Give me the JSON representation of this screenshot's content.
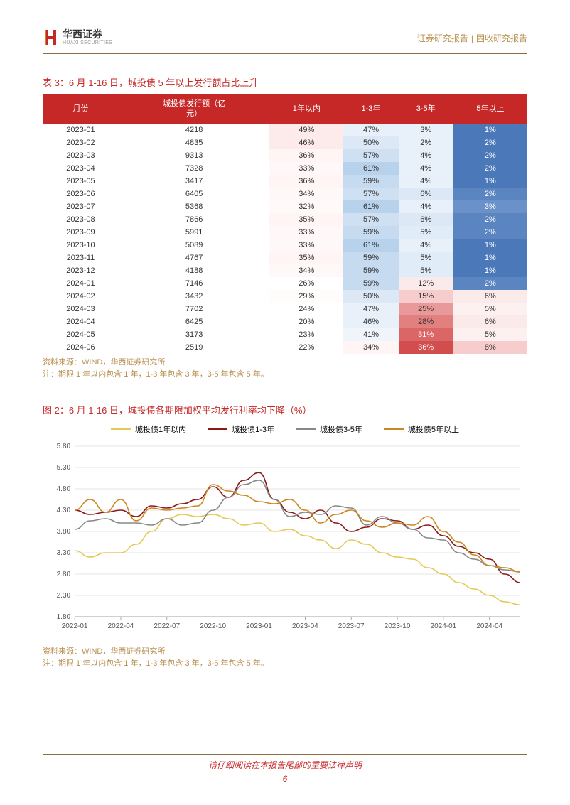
{
  "header": {
    "logo_cn": "华西证券",
    "logo_en": "HUAXI SECURITIES",
    "right_a": "证券研究报告",
    "right_b": "固收研究报告"
  },
  "table": {
    "title": "表 3：6 月 1-16 日，城投债 5 年以上发行额占比上升",
    "columns": [
      "月份",
      "城投债发行额（亿元）",
      "1年以内",
      "1-3年",
      "3-5年",
      "5年以上"
    ],
    "rows": [
      {
        "month": "2023-01",
        "amt": "4218",
        "c1": "49%",
        "c2": "47%",
        "c3": "3%",
        "c4": "1%",
        "cols": {
          "c1": "#fdeaea",
          "c2": "#e8f0fa",
          "c3": "#e8f0fa",
          "c4": "#4b78b8"
        }
      },
      {
        "month": "2023-02",
        "amt": "4835",
        "c1": "46%",
        "c2": "50%",
        "c3": "2%",
        "c4": "2%",
        "cols": {
          "c1": "#fdeaea",
          "c2": "#dce8f6",
          "c3": "#e8f0fa",
          "c4": "#4b78b8"
        }
      },
      {
        "month": "2023-03",
        "amt": "9313",
        "c1": "36%",
        "c2": "57%",
        "c3": "4%",
        "c4": "2%",
        "cols": {
          "c1": "#fff5f5",
          "c2": "#cfe0f2",
          "c3": "#e8f0fa",
          "c4": "#4b78b8"
        }
      },
      {
        "month": "2023-04",
        "amt": "7328",
        "c1": "33%",
        "c2": "61%",
        "c3": "4%",
        "c4": "2%",
        "cols": {
          "c1": "#fff8f8",
          "c2": "#b9d2ec",
          "c3": "#e8f0fa",
          "c4": "#4b78b8"
        }
      },
      {
        "month": "2023-05",
        "amt": "3417",
        "c1": "36%",
        "c2": "59%",
        "c3": "4%",
        "c4": "1%",
        "cols": {
          "c1": "#fff5f5",
          "c2": "#c6daf0",
          "c3": "#e8f0fa",
          "c4": "#4b78b8"
        }
      },
      {
        "month": "2023-06",
        "amt": "6405",
        "c1": "34%",
        "c2": "57%",
        "c3": "6%",
        "c4": "2%",
        "cols": {
          "c1": "#fff8f8",
          "c2": "#cfe0f2",
          "c3": "#dce8f6",
          "c4": "#5a85c0"
        }
      },
      {
        "month": "2023-07",
        "amt": "5368",
        "c1": "32%",
        "c2": "61%",
        "c3": "4%",
        "c4": "3%",
        "cols": {
          "c1": "#fffafa",
          "c2": "#b9d2ec",
          "c3": "#e8f0fa",
          "c4": "#6a92c8"
        }
      },
      {
        "month": "2023-08",
        "amt": "7866",
        "c1": "35%",
        "c2": "57%",
        "c3": "6%",
        "c4": "2%",
        "cols": {
          "c1": "#fff5f5",
          "c2": "#cfe0f2",
          "c3": "#dce8f6",
          "c4": "#5a85c0"
        }
      },
      {
        "month": "2023-09",
        "amt": "5991",
        "c1": "33%",
        "c2": "59%",
        "c3": "5%",
        "c4": "2%",
        "cols": {
          "c1": "#fff8f8",
          "c2": "#c6daf0",
          "c3": "#e0ecf8",
          "c4": "#5a85c0"
        }
      },
      {
        "month": "2023-10",
        "amt": "5089",
        "c1": "33%",
        "c2": "61%",
        "c3": "4%",
        "c4": "1%",
        "cols": {
          "c1": "#fff8f8",
          "c2": "#b9d2ec",
          "c3": "#e8f0fa",
          "c4": "#4b78b8"
        }
      },
      {
        "month": "2023-11",
        "amt": "4767",
        "c1": "35%",
        "c2": "59%",
        "c3": "5%",
        "c4": "1%",
        "cols": {
          "c1": "#fff5f5",
          "c2": "#c6daf0",
          "c3": "#e0ecf8",
          "c4": "#4b78b8"
        }
      },
      {
        "month": "2023-12",
        "amt": "4188",
        "c1": "34%",
        "c2": "59%",
        "c3": "5%",
        "c4": "1%",
        "cols": {
          "c1": "#fff8f8",
          "c2": "#c6daf0",
          "c3": "#e0ecf8",
          "c4": "#4b78b8"
        }
      },
      {
        "month": "2024-01",
        "amt": "7146",
        "c1": "26%",
        "c2": "59%",
        "c3": "12%",
        "c4": "2%",
        "cols": {
          "c1": "#ffffff",
          "c2": "#c6daf0",
          "c3": "#fbeaea",
          "c4": "#5a85c0"
        }
      },
      {
        "month": "2024-02",
        "amt": "3432",
        "c1": "29%",
        "c2": "50%",
        "c3": "15%",
        "c4": "6%",
        "cols": {
          "c1": "#fffcfc",
          "c2": "#dce8f6",
          "c3": "#f6cccc",
          "c4": "#fbeaea"
        }
      },
      {
        "month": "2024-03",
        "amt": "7702",
        "c1": "24%",
        "c2": "47%",
        "c3": "25%",
        "c4": "5%",
        "cols": {
          "c1": "#ffffff",
          "c2": "#e8f0fa",
          "c3": "#e99999",
          "c4": "#fdf0f0"
        }
      },
      {
        "month": "2024-04",
        "amt": "6425",
        "c1": "20%",
        "c2": "46%",
        "c3": "28%",
        "c4": "6%",
        "cols": {
          "c1": "#ffffff",
          "c2": "#e8f0fa",
          "c3": "#e28080",
          "c4": "#fbeaea"
        }
      },
      {
        "month": "2024-05",
        "amt": "3173",
        "c1": "23%",
        "c2": "41%",
        "c3": "31%",
        "c4": "5%",
        "cols": {
          "c1": "#ffffff",
          "c2": "#f0f5fc",
          "c3": "#db6666",
          "c4": "#fdf0f0"
        }
      },
      {
        "month": "2024-06",
        "amt": "2519",
        "c1": "22%",
        "c2": "34%",
        "c3": "36%",
        "c4": "8%",
        "cols": {
          "c1": "#ffffff",
          "c2": "#fff5f5",
          "c3": "#d24d4d",
          "c4": "#f6cccc"
        }
      }
    ],
    "notes": [
      "资料来源：WIND，华西证券研究所",
      "注：期限 1 年以内包含 1 年，1-3 年包含 3 年，3-5 年包含 5 年。"
    ]
  },
  "chart": {
    "title": "图 2：6 月 1-16 日，城投债各期限加权平均发行利率均下降（%）",
    "series": [
      {
        "name": "城投债1年以内",
        "color": "#e6c855"
      },
      {
        "name": "城投债1-3年",
        "color": "#8b1a1a"
      },
      {
        "name": "城投债3-5年",
        "color": "#888888"
      },
      {
        "name": "城投债5年以上",
        "color": "#c98820"
      }
    ],
    "x_labels": [
      "2022-01",
      "2022-04",
      "2022-07",
      "2022-10",
      "2023-01",
      "2023-04",
      "2023-07",
      "2023-10",
      "2024-01",
      "2024-04"
    ],
    "y_min": 1.8,
    "y_max": 5.8,
    "y_step": 0.5,
    "y_ticks": [
      "5.80",
      "5.30",
      "4.80",
      "4.30",
      "3.80",
      "3.30",
      "2.80",
      "2.30",
      "1.80"
    ],
    "data": {
      "s1": [
        3.35,
        3.2,
        3.3,
        3.3,
        3.5,
        3.8,
        4.1,
        4.2,
        4.15,
        4.2,
        4.1,
        3.95,
        4.0,
        3.8,
        3.85,
        3.7,
        3.6,
        3.4,
        3.6,
        3.5,
        3.3,
        3.2,
        3.15,
        2.95,
        2.8,
        2.6,
        2.45,
        2.3,
        2.15,
        2.08
      ],
      "s2": [
        4.3,
        4.2,
        4.25,
        4.3,
        4.15,
        4.4,
        4.35,
        4.45,
        4.55,
        4.85,
        4.6,
        5.0,
        5.18,
        4.55,
        4.25,
        4.1,
        4.3,
        4.0,
        3.8,
        3.9,
        4.1,
        4.05,
        3.85,
        3.95,
        3.7,
        3.45,
        3.3,
        3.15,
        2.8,
        2.6
      ],
      "s3": [
        3.85,
        4.05,
        4.1,
        4.0,
        4.0,
        3.95,
        4.1,
        3.95,
        4.0,
        4.3,
        4.6,
        4.9,
        5.0,
        4.55,
        4.15,
        4.25,
        4.2,
        4.4,
        4.35,
        3.95,
        4.15,
        4.0,
        3.85,
        3.65,
        3.6,
        3.3,
        3.15,
        3.0,
        2.9,
        2.85
      ],
      "s4": [
        4.3,
        4.55,
        4.25,
        4.55,
        4.05,
        4.35,
        4.3,
        4.35,
        4.4,
        4.9,
        4.75,
        4.65,
        4.5,
        4.45,
        4.55,
        4.3,
        4.0,
        4.2,
        4.3,
        4.05,
        3.9,
        4.0,
        3.95,
        4.15,
        3.8,
        3.55,
        3.25,
        3.0,
        2.95,
        2.85
      ]
    },
    "notes": [
      "资料来源：WIND，华西证券研究所",
      "注：期限 1 年以内包含 1 年，1-3 年包含 3 年，3-5 年包含 5 年。"
    ]
  },
  "footer": {
    "text": "请仔细阅读在本报告尾部的重要法律声明",
    "page": "6"
  }
}
